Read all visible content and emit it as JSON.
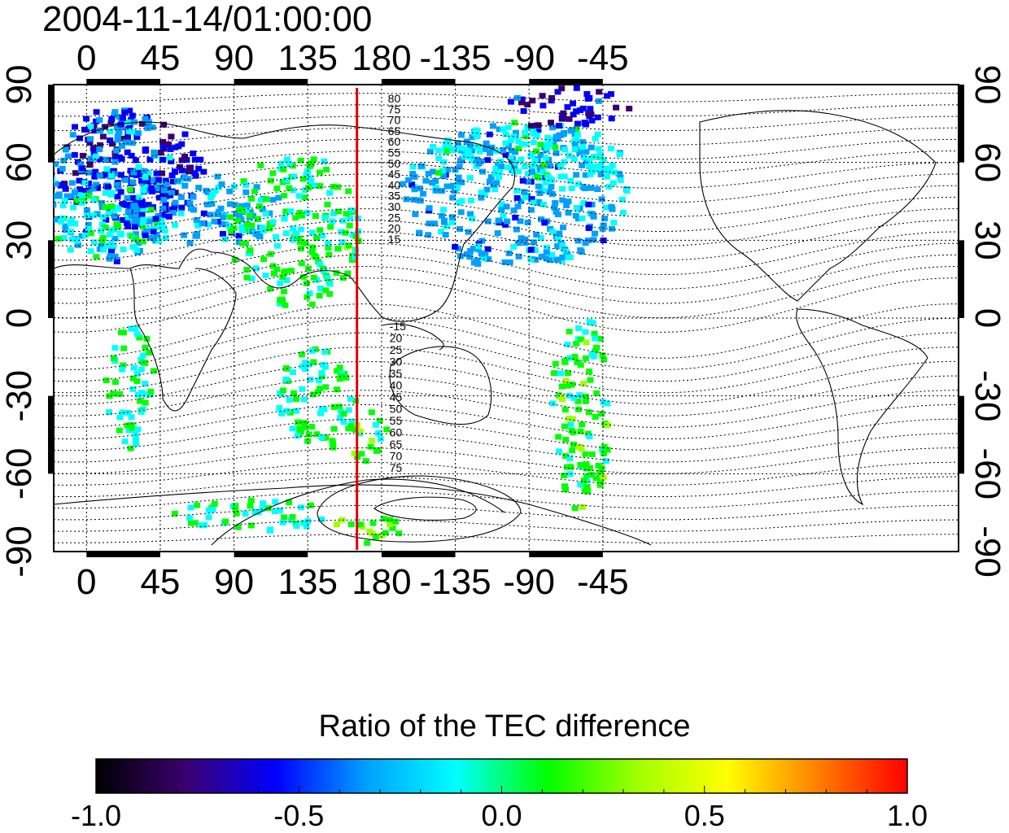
{
  "title": "2004-11-14/01:00:00",
  "map": {
    "lon_ticks": [
      0,
      45,
      90,
      135,
      180,
      -135,
      -90,
      -45
    ],
    "lat_ticks": [
      90,
      60,
      30,
      0,
      -30,
      -60,
      -90
    ],
    "lon_range": [
      -20,
      172
    ],
    "lat_range": [
      -90,
      90
    ],
    "meridian_line": {
      "lon": 165,
      "color": "#e00000"
    },
    "north_mlat_labels": [
      "80",
      "75",
      "70",
      "65",
      "60",
      "55",
      "50",
      "45",
      "40",
      "35",
      "30",
      "25",
      "20",
      "15"
    ],
    "south_mlat_labels": [
      "-15",
      "20",
      "25",
      "30",
      "35",
      "40",
      "45",
      "50",
      "55",
      "60",
      "65",
      "70",
      "75"
    ],
    "data_blobs": [
      {
        "lon": 25,
        "lat": 58,
        "rx": 45,
        "ry": 22,
        "value": -0.6
      },
      {
        "lon": 15,
        "lat": 52,
        "rx": 40,
        "ry": 30,
        "value": -0.35
      },
      {
        "lon": 10,
        "lat": 38,
        "rx": 35,
        "ry": 14,
        "value": -0.05
      },
      {
        "lon": 70,
        "lat": 42,
        "rx": 50,
        "ry": 14,
        "value": -0.35
      },
      {
        "lon": 125,
        "lat": 35,
        "rx": 40,
        "ry": 30,
        "value": 0.05
      },
      {
        "lon": -100,
        "lat": 48,
        "rx": 70,
        "ry": 28,
        "value": -0.3
      },
      {
        "lon": -95,
        "lat": 63,
        "rx": 60,
        "ry": 14,
        "value": -0.15
      },
      {
        "lon": -70,
        "lat": 82,
        "rx": 40,
        "ry": 8,
        "value": -0.6
      },
      {
        "lon": 140,
        "lat": -30,
        "rx": 25,
        "ry": 20,
        "value": 0.05
      },
      {
        "lon": 170,
        "lat": -45,
        "rx": 12,
        "ry": 10,
        "value": 0.1
      },
      {
        "lon": -60,
        "lat": -35,
        "rx": 18,
        "ry": 40,
        "value": 0.1
      },
      {
        "lon": 25,
        "lat": -25,
        "rx": 15,
        "ry": 25,
        "value": 0.0
      },
      {
        "lon": 100,
        "lat": -75,
        "rx": 50,
        "ry": 6,
        "value": 0.0
      },
      {
        "lon": 170,
        "lat": -80,
        "rx": 20,
        "ry": 6,
        "value": 0.2
      }
    ]
  },
  "colorbar": {
    "title": "Ratio of the TEC difference",
    "range": [
      -1.0,
      1.0
    ],
    "tick_labels": [
      "-1.0",
      "-0.5",
      "0.0",
      "0.5",
      "1.0"
    ],
    "tick_values": [
      -1.0,
      -0.5,
      0.0,
      0.5,
      1.0
    ],
    "colormap": [
      "#000000",
      "#3a0070",
      "#0000ff",
      "#00a0ff",
      "#00ffff",
      "#00ff00",
      "#a0ff00",
      "#ffff00",
      "#ff8000",
      "#ff0000"
    ]
  }
}
